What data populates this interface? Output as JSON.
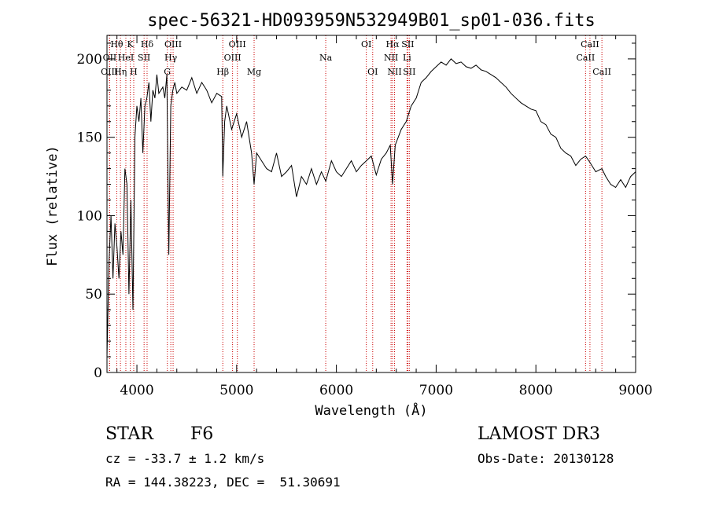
{
  "chart_data": {
    "type": "line",
    "title": "spec-56321-HD093959N532949B01_sp01-036.fits",
    "xlabel": "Wavelength (Å)",
    "ylabel": "Flux (relative)",
    "xlim": [
      3700,
      9000
    ],
    "ylim": [
      0,
      215
    ],
    "xticks": [
      4000,
      5000,
      6000,
      7000,
      8000,
      9000
    ],
    "yticks": [
      0,
      50,
      100,
      150,
      200
    ],
    "grid": false,
    "series": [
      {
        "x": [
          3700,
          3720,
          3740,
          3760,
          3780,
          3800,
          3820,
          3840,
          3860,
          3880,
          3900,
          3920,
          3940,
          3960,
          3980,
          4000,
          4020,
          4040,
          4060,
          4080,
          4100,
          4120,
          4140,
          4160,
          4180,
          4200,
          4220,
          4240,
          4260,
          4280,
          4300,
          4320,
          4340,
          4360,
          4380,
          4400,
          4450,
          4500,
          4550,
          4600,
          4650,
          4700,
          4750,
          4800,
          4850,
          4861,
          4880,
          4900,
          4950,
          5000,
          5050,
          5100,
          5150,
          5175,
          5200,
          5250,
          5300,
          5350,
          5400,
          5450,
          5500,
          5550,
          5600,
          5650,
          5700,
          5750,
          5800,
          5850,
          5893,
          5950,
          6000,
          6050,
          6100,
          6150,
          6200,
          6250,
          6300,
          6350,
          6400,
          6450,
          6500,
          6540,
          6563,
          6590,
          6620,
          6650,
          6700,
          6750,
          6800,
          6850,
          6900,
          6950,
          7000,
          7050,
          7100,
          7150,
          7200,
          7250,
          7300,
          7350,
          7400,
          7450,
          7500,
          7550,
          7600,
          7650,
          7700,
          7750,
          7800,
          7850,
          7900,
          7950,
          8000,
          8050,
          8100,
          8150,
          8200,
          8250,
          8300,
          8350,
          8400,
          8450,
          8498,
          8542,
          8600,
          8662,
          8700,
          8750,
          8800,
          8850,
          8900,
          8950,
          9000
        ],
        "y": [
          10,
          70,
          100,
          60,
          95,
          80,
          60,
          90,
          75,
          130,
          120,
          50,
          110,
          40,
          150,
          170,
          160,
          175,
          140,
          170,
          175,
          185,
          160,
          180,
          175,
          190,
          178,
          180,
          182,
          175,
          190,
          75,
          170,
          180,
          185,
          178,
          182,
          180,
          188,
          178,
          185,
          180,
          172,
          178,
          176,
          125,
          160,
          170,
          155,
          165,
          150,
          160,
          140,
          120,
          140,
          135,
          130,
          128,
          140,
          125,
          128,
          132,
          112,
          125,
          120,
          130,
          120,
          128,
          122,
          135,
          128,
          125,
          130,
          135,
          128,
          132,
          135,
          138,
          126,
          136,
          140,
          145,
          120,
          145,
          150,
          155,
          160,
          170,
          175,
          185,
          188,
          192,
          195,
          198,
          196,
          200,
          197,
          198,
          195,
          194,
          196,
          193,
          192,
          190,
          188,
          185,
          182,
          178,
          175,
          172,
          170,
          168,
          167,
          160,
          158,
          152,
          150,
          143,
          140,
          138,
          132,
          136,
          138,
          134,
          128,
          130,
          125,
          120,
          118,
          123,
          118,
          125,
          128
        ]
      }
    ],
    "spectral_lines": [
      {
        "name": "Hθ",
        "x": 3798,
        "row": 0
      },
      {
        "name": "OII",
        "x": 3727,
        "row": 1
      },
      {
        "name": "OIII",
        "x": 3725,
        "row": 2
      },
      {
        "name": "HeI",
        "x": 3889,
        "row": 1
      },
      {
        "name": "Hη",
        "x": 3835,
        "row": 2
      },
      {
        "name": "K",
        "x": 3934,
        "row": 0
      },
      {
        "name": "SII",
        "x": 4072,
        "row": 1
      },
      {
        "name": "H",
        "x": 3968,
        "row": 2
      },
      {
        "name": "Hδ",
        "x": 4102,
        "row": 0
      },
      {
        "name": "OIII",
        "x": 4363,
        "row": 0
      },
      {
        "name": "Hγ",
        "x": 4340,
        "row": 1
      },
      {
        "name": "G",
        "x": 4305,
        "row": 2
      },
      {
        "name": "OIII",
        "x": 5007,
        "row": 0
      },
      {
        "name": "OIII",
        "x": 4959,
        "row": 1
      },
      {
        "name": "Hβ",
        "x": 4861,
        "row": 2
      },
      {
        "name": "Mg",
        "x": 5175,
        "row": 2
      },
      {
        "name": "Na",
        "x": 5893,
        "row": 1
      },
      {
        "name": "OI",
        "x": 6300,
        "row": 0
      },
      {
        "name": "OI",
        "x": 6364,
        "row": 2
      },
      {
        "name": "Hα",
        "x": 6563,
        "row": 0
      },
      {
        "name": "SII",
        "x": 6716,
        "row": 0
      },
      {
        "name": "NII",
        "x": 6548,
        "row": 1
      },
      {
        "name": "Li",
        "x": 6708,
        "row": 1
      },
      {
        "name": "NII",
        "x": 6583,
        "row": 2
      },
      {
        "name": "SII",
        "x": 6731,
        "row": 2
      },
      {
        "name": "CaII",
        "x": 8542,
        "row": 0
      },
      {
        "name": "CaII",
        "x": 8498,
        "row": 1
      },
      {
        "name": "CaII",
        "x": 8662,
        "row": 2
      }
    ],
    "colors": {
      "spectrum": "#000000",
      "line_markers": "#cc0000",
      "frame": "#000000"
    }
  },
  "info": {
    "object_class": "STAR",
    "subclass": "F6",
    "survey": "LAMOST DR3",
    "redshift": "cz = -33.7 ± 1.2 km/s",
    "obs_date": "Obs-Date: 20130128",
    "coords": "RA = 144.38223, DEC =  51.30691"
  }
}
